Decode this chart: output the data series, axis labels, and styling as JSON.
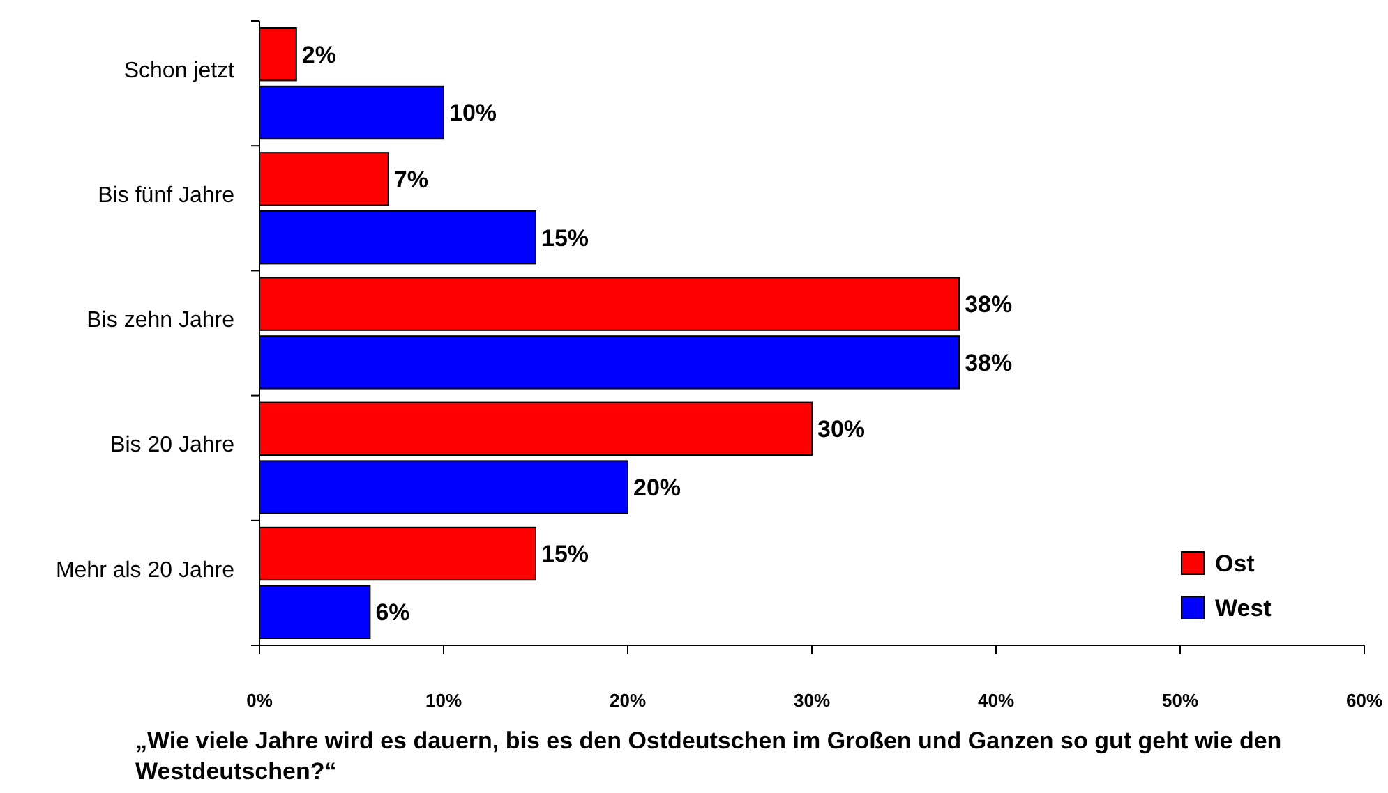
{
  "chart_data": {
    "type": "bar",
    "orientation": "horizontal",
    "xlabel": "„Wie viele Jahre wird es dauern, bis es den Ostdeutschen im Großen und Ganzen so gut geht wie den Westdeutschen?“",
    "categories": [
      "Schon jetzt",
      "Bis fünf Jahre",
      "Bis zehn Jahre",
      "Bis 20 Jahre",
      "Mehr als 20 Jahre"
    ],
    "series": [
      {
        "name": "Ost",
        "color": "#ff0000",
        "values": [
          2,
          7,
          38,
          30,
          15
        ],
        "value_labels": [
          "2%",
          "7%",
          "38%",
          "30%",
          "15%"
        ]
      },
      {
        "name": "West",
        "color": "#0000ff",
        "values": [
          10,
          15,
          38,
          20,
          6
        ],
        "value_labels": [
          "10%",
          "15%",
          "38%",
          "20%",
          "6%"
        ]
      }
    ],
    "xlim": [
      0,
      60
    ],
    "xticks": [
      {
        "value": 0,
        "label": "0%"
      },
      {
        "value": 10,
        "label": "10%"
      },
      {
        "value": 20,
        "label": "20%"
      },
      {
        "value": 30,
        "label": "30%"
      },
      {
        "value": 40,
        "label": "40%"
      },
      {
        "value": 50,
        "label": "50%"
      },
      {
        "value": 60,
        "label": "60%"
      }
    ],
    "grid": false,
    "legend": "bottom right"
  }
}
